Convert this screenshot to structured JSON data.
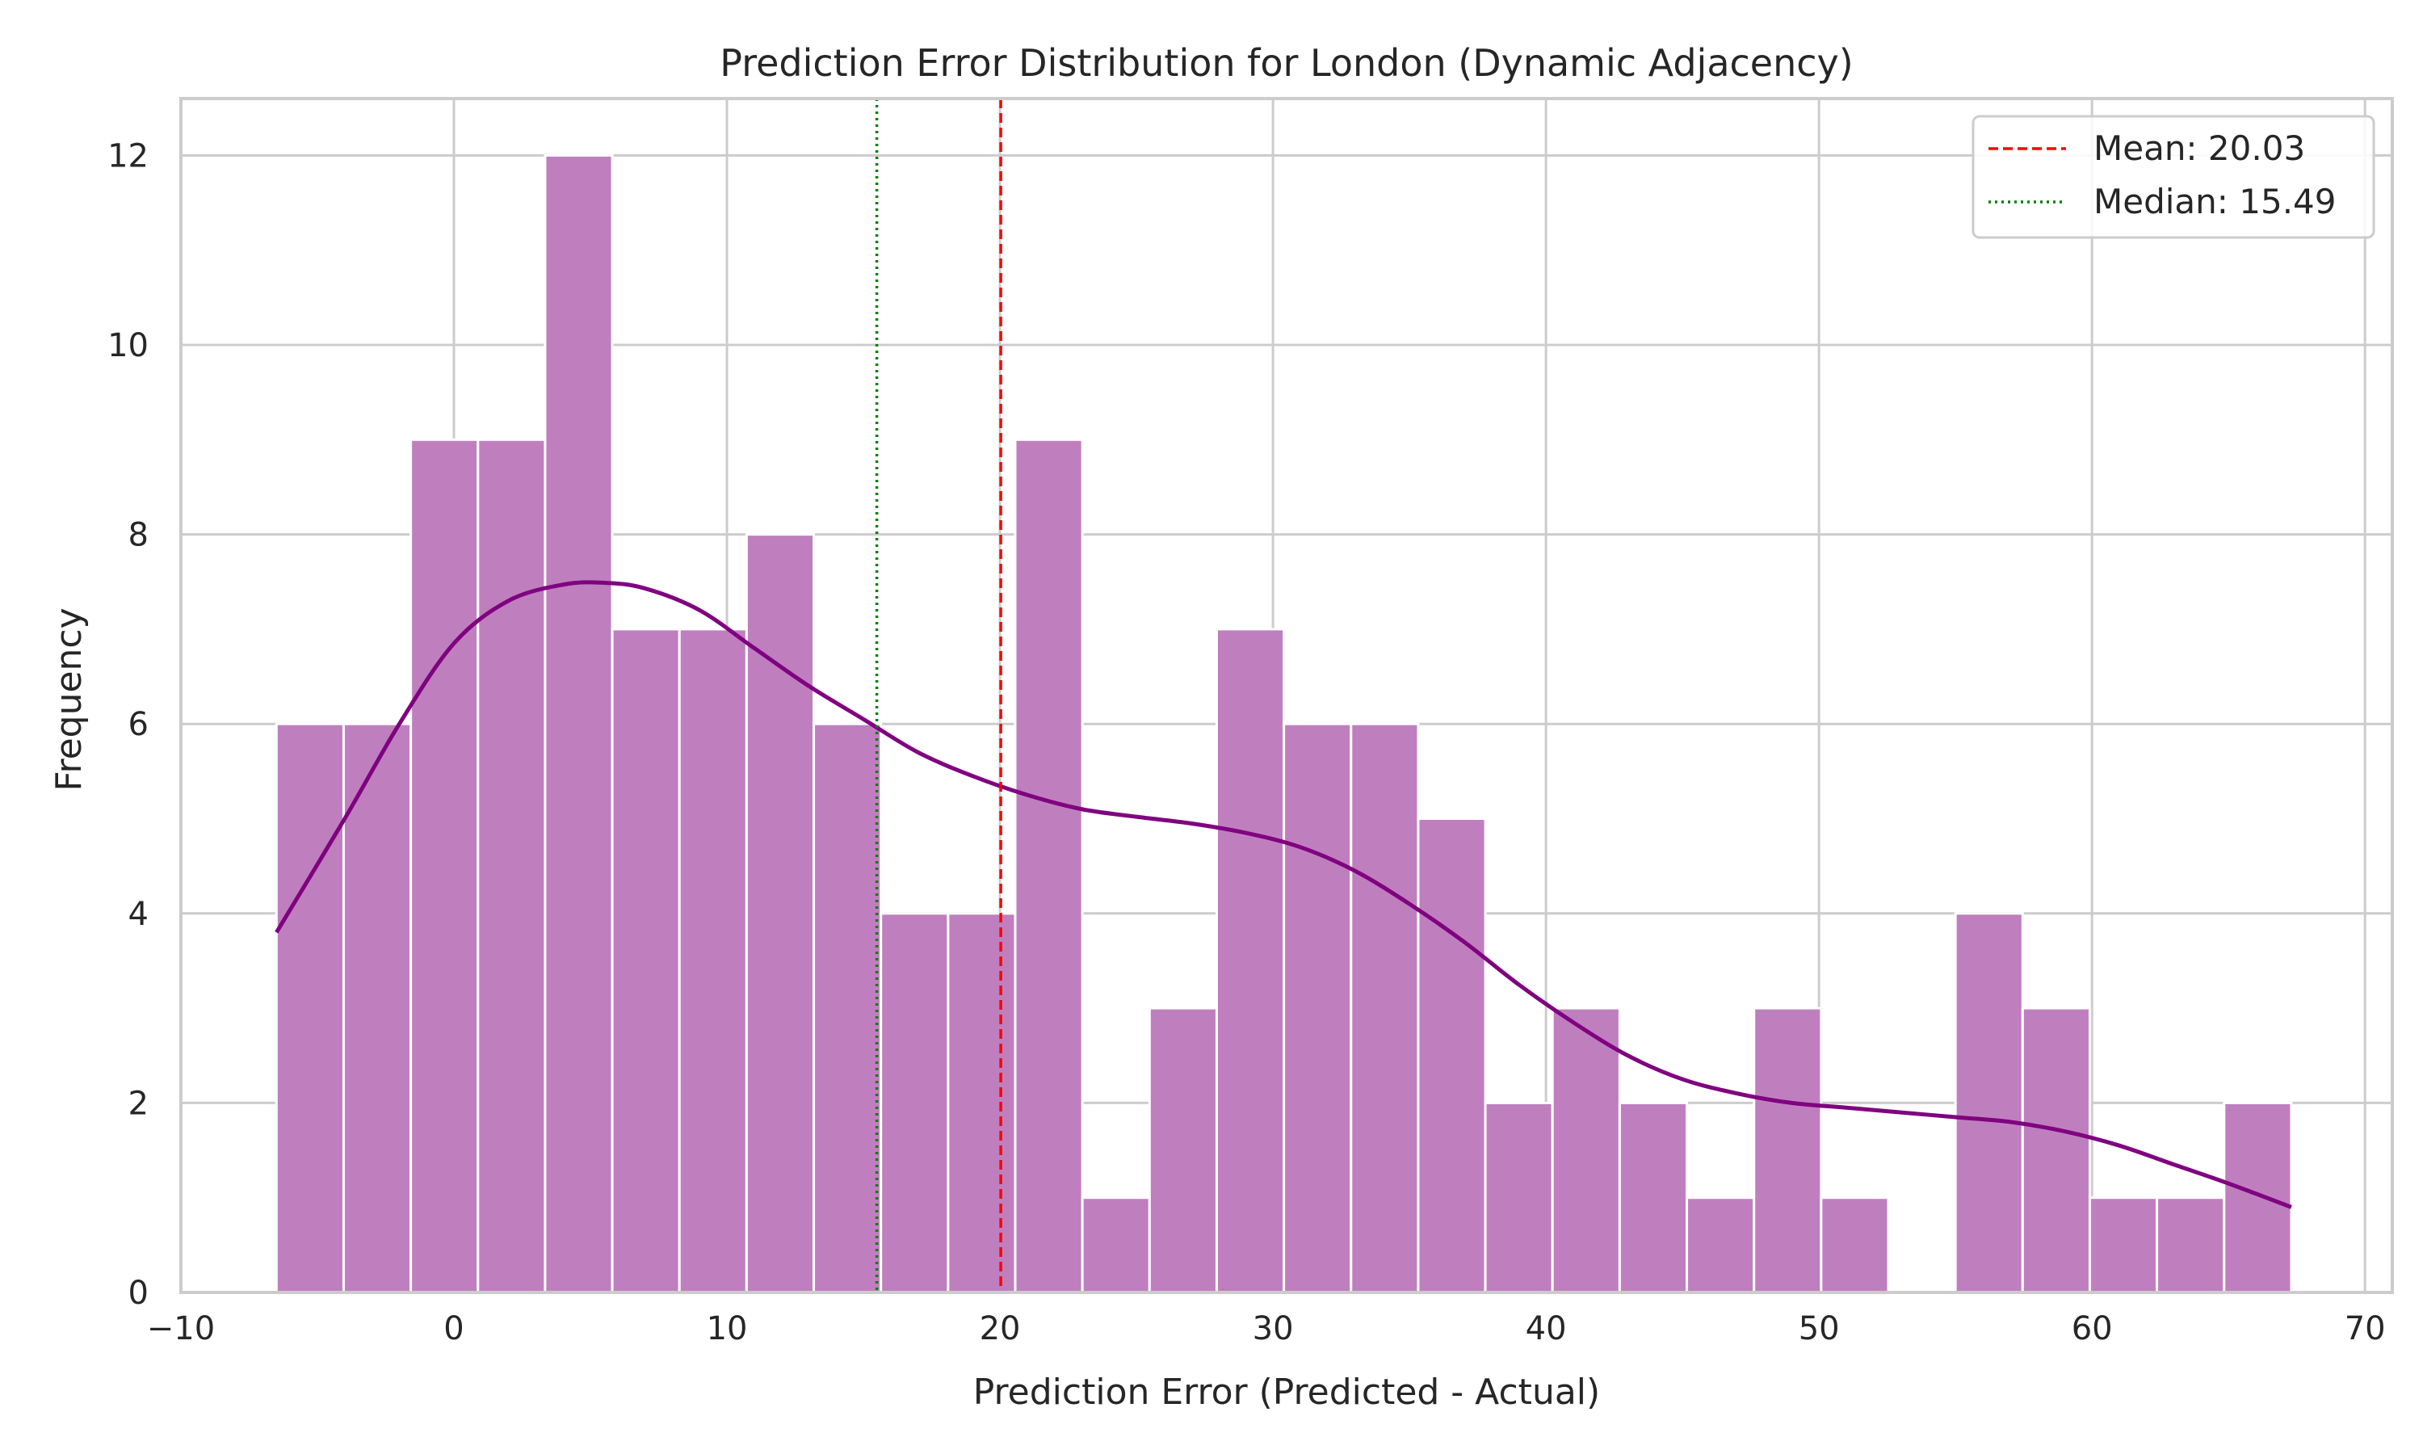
{
  "chart_data": {
    "type": "bar",
    "title": "Prediction Error Distribution for London (Dynamic Adjacency)",
    "xlabel": "Prediction Error (Predicted - Actual)",
    "ylabel": "Frequency",
    "xlim": [
      -10,
      71
    ],
    "ylim": [
      0,
      12.6
    ],
    "xticks": [
      -10,
      0,
      10,
      20,
      30,
      40,
      50,
      60,
      70
    ],
    "xtick_labels": [
      "−10",
      "0",
      "10",
      "20",
      "30",
      "40",
      "50",
      "60",
      "70"
    ],
    "yticks": [
      0,
      2,
      4,
      6,
      8,
      10,
      12
    ],
    "ytick_labels": [
      "0",
      "2",
      "4",
      "6",
      "8",
      "10",
      "12"
    ],
    "grid": true,
    "legend_position": "top-right",
    "colors": {
      "bars": "#bf7fbf",
      "kde": "#800080",
      "mean": "#ff0000",
      "median": "#008000",
      "grid": "#cccccc"
    },
    "bins": [
      {
        "x0": -6.5,
        "x1": -4.04,
        "count": 6
      },
      {
        "x0": -4.04,
        "x1": -1.58,
        "count": 6
      },
      {
        "x0": -1.58,
        "x1": 0.88,
        "count": 9
      },
      {
        "x0": 0.88,
        "x1": 3.34,
        "count": 9
      },
      {
        "x0": 3.34,
        "x1": 5.8,
        "count": 12
      },
      {
        "x0": 5.8,
        "x1": 8.26,
        "count": 7
      },
      {
        "x0": 8.26,
        "x1": 10.72,
        "count": 7
      },
      {
        "x0": 10.72,
        "x1": 13.18,
        "count": 8
      },
      {
        "x0": 13.18,
        "x1": 15.64,
        "count": 6
      },
      {
        "x0": 15.64,
        "x1": 18.1,
        "count": 4
      },
      {
        "x0": 18.1,
        "x1": 20.56,
        "count": 4
      },
      {
        "x0": 20.56,
        "x1": 23.02,
        "count": 9
      },
      {
        "x0": 23.02,
        "x1": 25.48,
        "count": 1
      },
      {
        "x0": 25.48,
        "x1": 27.94,
        "count": 3
      },
      {
        "x0": 27.94,
        "x1": 30.4,
        "count": 7
      },
      {
        "x0": 30.4,
        "x1": 32.86,
        "count": 6
      },
      {
        "x0": 32.86,
        "x1": 35.32,
        "count": 6
      },
      {
        "x0": 35.32,
        "x1": 37.78,
        "count": 5
      },
      {
        "x0": 37.78,
        "x1": 40.24,
        "count": 2
      },
      {
        "x0": 40.24,
        "x1": 42.7,
        "count": 3
      },
      {
        "x0": 42.7,
        "x1": 45.16,
        "count": 2
      },
      {
        "x0": 45.16,
        "x1": 47.62,
        "count": 1
      },
      {
        "x0": 47.62,
        "x1": 50.08,
        "count": 3
      },
      {
        "x0": 50.08,
        "x1": 52.54,
        "count": 1
      },
      {
        "x0": 52.54,
        "x1": 55.0,
        "count": 0
      },
      {
        "x0": 55.0,
        "x1": 57.46,
        "count": 4
      },
      {
        "x0": 57.46,
        "x1": 59.92,
        "count": 3
      },
      {
        "x0": 59.92,
        "x1": 62.38,
        "count": 1
      },
      {
        "x0": 62.38,
        "x1": 64.84,
        "count": 1
      },
      {
        "x0": 64.84,
        "x1": 67.3,
        "count": 2
      }
    ],
    "kde_curve": [
      [
        -6.5,
        3.8
      ],
      [
        -4,
        5.0
      ],
      [
        -2,
        6.0
      ],
      [
        0,
        6.85
      ],
      [
        2,
        7.3
      ],
      [
        4,
        7.47
      ],
      [
        5.5,
        7.49
      ],
      [
        7,
        7.43
      ],
      [
        9,
        7.2
      ],
      [
        11,
        6.8
      ],
      [
        13,
        6.4
      ],
      [
        15,
        6.05
      ],
      [
        17,
        5.7
      ],
      [
        19,
        5.45
      ],
      [
        21,
        5.25
      ],
      [
        23,
        5.1
      ],
      [
        25,
        5.02
      ],
      [
        27,
        4.95
      ],
      [
        29,
        4.85
      ],
      [
        31,
        4.7
      ],
      [
        33,
        4.45
      ],
      [
        35,
        4.1
      ],
      [
        37,
        3.7
      ],
      [
        39,
        3.25
      ],
      [
        41,
        2.85
      ],
      [
        43,
        2.5
      ],
      [
        45,
        2.25
      ],
      [
        47,
        2.1
      ],
      [
        49,
        2.0
      ],
      [
        51,
        1.95
      ],
      [
        53,
        1.9
      ],
      [
        55,
        1.85
      ],
      [
        57,
        1.8
      ],
      [
        59,
        1.7
      ],
      [
        61,
        1.55
      ],
      [
        63,
        1.35
      ],
      [
        65,
        1.15
      ],
      [
        67.3,
        0.9
      ]
    ],
    "reference_lines": [
      {
        "name": "Mean: 20.03",
        "x": 20.03,
        "style": "dashed",
        "color": "#ff0000"
      },
      {
        "name": "Median: 15.49",
        "x": 15.49,
        "style": "dotted",
        "color": "#008000"
      }
    ]
  }
}
